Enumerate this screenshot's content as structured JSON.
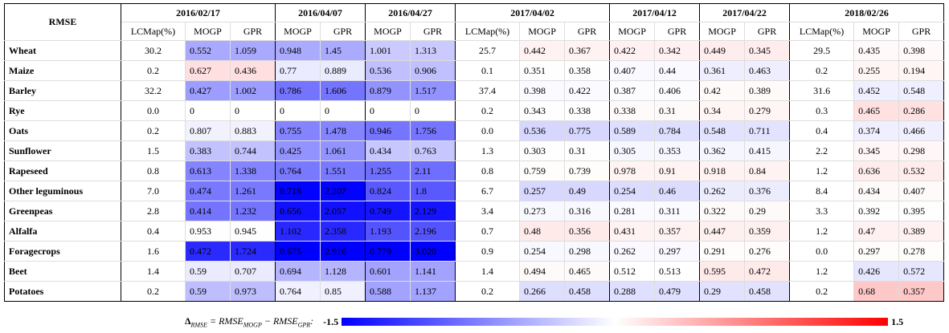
{
  "table": {
    "corner": "RMSE",
    "groups": [
      {
        "date": "2016/02/17",
        "columns": [
          "LCMap(%)",
          "MOGP",
          "GPR"
        ]
      },
      {
        "date": "2016/04/07",
        "columns": [
          "MOGP",
          "GPR"
        ]
      },
      {
        "date": "2016/04/27",
        "columns": [
          "MOGP",
          "GPR"
        ]
      },
      {
        "date": "2017/04/02",
        "columns": [
          "LCMap(%)",
          "MOGP",
          "GPR"
        ]
      },
      {
        "date": "2017/04/12",
        "columns": [
          "MOGP",
          "GPR"
        ]
      },
      {
        "date": "2017/04/22",
        "columns": [
          "MOGP",
          "GPR"
        ]
      },
      {
        "date": "2018/02/26",
        "columns": [
          "LCMap(%)",
          "MOGP",
          "GPR"
        ]
      }
    ],
    "rows": [
      {
        "label": "Wheat",
        "cells": [
          "30.2",
          "0.552",
          "1.059",
          "0.948",
          "1.45",
          "1.001",
          "1.313",
          "25.7",
          "0.442",
          "0.367",
          "0.422",
          "0.342",
          "0.449",
          "0.345",
          "29.5",
          "0.435",
          "0.398"
        ]
      },
      {
        "label": "Maize",
        "cells": [
          "0.2",
          "0.627",
          "0.436",
          "0.77",
          "0.889",
          "0.536",
          "0.906",
          "0.1",
          "0.351",
          "0.358",
          "0.407",
          "0.44",
          "0.361",
          "0.463",
          "0.2",
          "0.255",
          "0.194"
        ]
      },
      {
        "label": "Barley",
        "cells": [
          "32.2",
          "0.427",
          "1.002",
          "0.786",
          "1.606",
          "0.879",
          "1.517",
          "37.4",
          "0.398",
          "0.422",
          "0.387",
          "0.406",
          "0.42",
          "0.389",
          "31.6",
          "0.452",
          "0.548"
        ]
      },
      {
        "label": "Rye",
        "cells": [
          "0.0",
          "0",
          "0",
          "0",
          "0",
          "0",
          "0",
          "0.2",
          "0.343",
          "0.338",
          "0.338",
          "0.31",
          "0.34",
          "0.279",
          "0.3",
          "0.465",
          "0.286"
        ]
      },
      {
        "label": "Oats",
        "cells": [
          "0.2",
          "0.807",
          "0.883",
          "0.755",
          "1.478",
          "0.946",
          "1.756",
          "0.0",
          "0.536",
          "0.775",
          "0.589",
          "0.784",
          "0.548",
          "0.711",
          "0.4",
          "0.374",
          "0.466"
        ]
      },
      {
        "label": "Sunflower",
        "cells": [
          "1.5",
          "0.383",
          "0.744",
          "0.425",
          "1.061",
          "0.434",
          "0.763",
          "1.3",
          "0.303",
          "0.31",
          "0.305",
          "0.353",
          "0.362",
          "0.415",
          "2.2",
          "0.345",
          "0.298"
        ]
      },
      {
        "label": "Rapeseed",
        "cells": [
          "0.8",
          "0.613",
          "1.338",
          "0.764",
          "1.551",
          "1.255",
          "2.11",
          "0.8",
          "0.759",
          "0.739",
          "0.978",
          "0.91",
          "0.918",
          "0.84",
          "1.2",
          "0.636",
          "0.532"
        ]
      },
      {
        "label": "Other leguminous",
        "cells": [
          "7.0",
          "0.474",
          "1.261",
          "0.718",
          "2.207",
          "0.824",
          "1.8",
          "6.7",
          "0.257",
          "0.49",
          "0.254",
          "0.46",
          "0.262",
          "0.376",
          "8.4",
          "0.434",
          "0.407"
        ]
      },
      {
        "label": "Greenpeas",
        "cells": [
          "2.8",
          "0.414",
          "1.232",
          "0.656",
          "2.057",
          "0.749",
          "2.129",
          "3.4",
          "0.273",
          "0.316",
          "0.281",
          "0.311",
          "0.322",
          "0.29",
          "3.3",
          "0.392",
          "0.395"
        ]
      },
      {
        "label": "Alfalfa",
        "cells": [
          "0.4",
          "0.953",
          "0.945",
          "1.102",
          "2.358",
          "1.193",
          "2.196",
          "0.7",
          "0.48",
          "0.356",
          "0.431",
          "0.357",
          "0.447",
          "0.359",
          "1.2",
          "0.47",
          "0.389"
        ]
      },
      {
        "label": "Foragecrops",
        "cells": [
          "1.6",
          "0.472",
          "1.724",
          "0.675",
          "2.916",
          "0.779",
          "3.020",
          "0.9",
          "0.254",
          "0.298",
          "0.262",
          "0.297",
          "0.291",
          "0.276",
          "0.0",
          "0.297",
          "0.278"
        ]
      },
      {
        "label": "Beet",
        "cells": [
          "1.4",
          "0.59",
          "0.707",
          "0.694",
          "1.128",
          "0.601",
          "1.141",
          "1.4",
          "0.494",
          "0.465",
          "0.512",
          "0.513",
          "0.595",
          "0.472",
          "1.2",
          "0.426",
          "0.572"
        ]
      },
      {
        "label": "Potatoes",
        "cells": [
          "0.2",
          "0.59",
          "0.973",
          "0.764",
          "0.85",
          "0.588",
          "1.137",
          "0.2",
          "0.266",
          "0.458",
          "0.288",
          "0.479",
          "0.29",
          "0.458",
          "0.2",
          "0.68",
          "0.357"
        ]
      }
    ]
  },
  "legend": {
    "label_parts": [
      "Δ",
      "RMSE",
      " = RMSE",
      "MOGP",
      " − RMSE",
      "GPR",
      ":"
    ],
    "min": -1.5,
    "max": 1.5
  }
}
